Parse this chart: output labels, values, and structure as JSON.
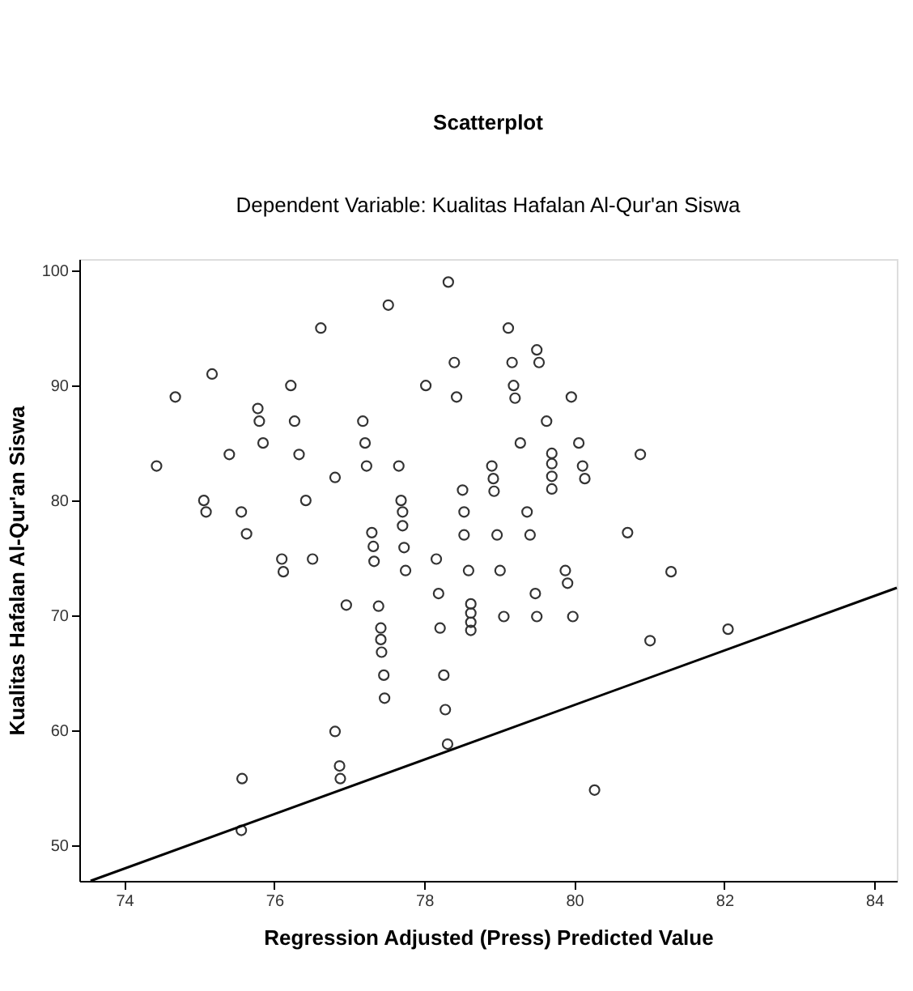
{
  "chart_data": {
    "type": "scatter",
    "title": "Scatterplot",
    "subtitle": "Dependent Variable: Kualitas Hafalan Al-Qur'an Siswa",
    "xlabel": "Regression Adjusted (Press) Predicted Value",
    "ylabel": "Kualitas Hafalan Al-Qur'an Siswa",
    "xlim": [
      73.4,
      84.3
    ],
    "ylim": [
      46.9,
      101
    ],
    "xticks": [
      74,
      76,
      78,
      80,
      82,
      84
    ],
    "yticks": [
      50,
      60,
      70,
      80,
      90,
      100
    ],
    "grid": false,
    "series": [
      {
        "marker": "circle",
        "color": "#333333",
        "x": [
          76.62,
          75.17,
          76.22,
          74.68,
          75.78,
          75.8,
          76.27,
          75.85,
          75.4,
          76.33,
          74.43,
          76.81,
          75.06,
          75.09,
          75.56,
          76.42,
          75.63,
          76.1,
          76.12,
          76.51,
          76.96,
          76.81,
          76.87,
          76.88,
          75.57,
          75.56,
          78.32,
          77.52,
          79.12,
          79.5,
          79.53,
          78.4,
          79.17,
          78.02,
          78.43,
          79.19,
          79.21,
          79.96,
          77.18,
          77.21,
          77.23,
          77.66,
          79.63,
          79.28,
          80.06,
          79.7,
          79.7,
          79.7,
          79.7,
          80.11,
          80.14,
          78.9,
          78.92,
          78.93,
          77.69,
          77.71,
          77.71,
          78.51,
          78.53,
          79.37,
          77.3,
          78.53,
          78.97,
          79.41,
          80.71,
          80.88,
          77.32,
          77.33,
          77.73,
          77.75,
          78.16,
          78.19,
          78.21,
          78.59,
          79.01,
          78.62,
          78.62,
          78.62,
          78.62,
          79.06,
          79.48,
          79.5,
          79.88,
          79.91,
          79.98,
          77.39,
          77.42,
          77.42,
          77.43,
          77.46,
          77.47,
          78.26,
          78.28,
          78.31,
          80.27,
          81.29,
          81.01,
          82.05
        ],
        "values": [
          95.0,
          91.0,
          90.0,
          89.0,
          88.0,
          86.9,
          86.9,
          85.0,
          84.0,
          84.0,
          83.0,
          82.0,
          80.0,
          79.0,
          79.0,
          80.0,
          77.1,
          74.9,
          73.8,
          74.9,
          70.9,
          59.9,
          56.9,
          55.8,
          55.8,
          51.3,
          99.0,
          97.0,
          95.0,
          93.1,
          92.0,
          92.0,
          92.0,
          90.0,
          89.0,
          90.0,
          88.9,
          89.0,
          86.9,
          85.0,
          83.0,
          83.0,
          86.9,
          85.0,
          85.0,
          84.1,
          83.2,
          82.1,
          81.0,
          83.0,
          81.9,
          83.0,
          81.9,
          80.8,
          80.0,
          79.0,
          77.8,
          80.9,
          79.0,
          79.0,
          77.2,
          77.0,
          77.0,
          77.0,
          77.2,
          84.0,
          76.0,
          74.7,
          75.9,
          73.9,
          74.9,
          71.9,
          68.9,
          73.9,
          73.9,
          71.0,
          70.2,
          69.4,
          68.7,
          69.9,
          71.9,
          69.9,
          73.9,
          72.8,
          69.9,
          70.8,
          68.9,
          67.9,
          66.8,
          64.8,
          62.8,
          64.8,
          61.8,
          58.8,
          54.8,
          73.8,
          67.8,
          68.8
        ]
      },
      {
        "type": "line",
        "color": "#000000",
        "x": [
          73.55,
          84.3
        ],
        "values": [
          46.9,
          72.4
        ]
      }
    ]
  }
}
